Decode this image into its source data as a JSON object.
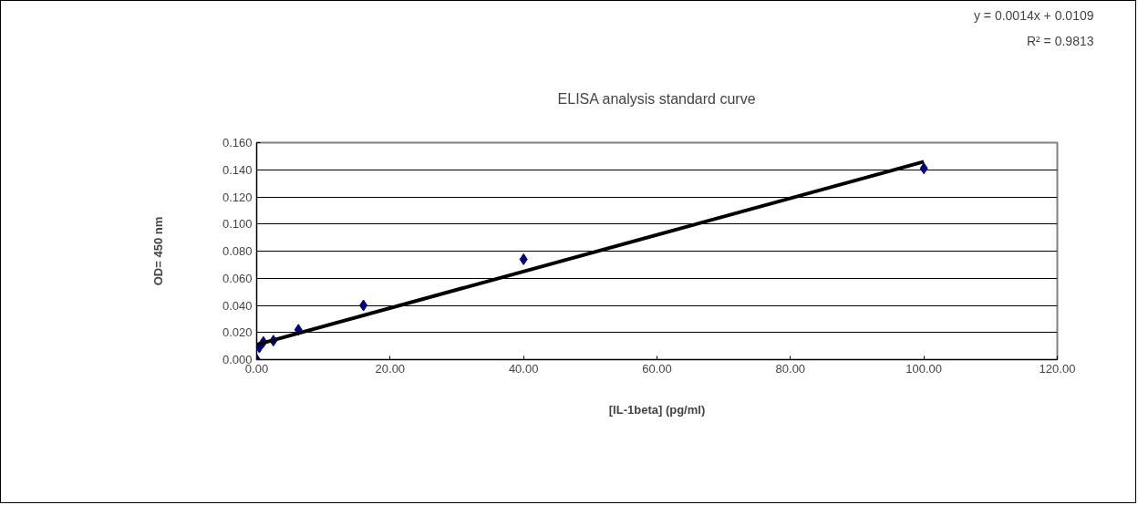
{
  "chart_data": {
    "type": "scatter",
    "title": "ELISA analysis standard curve",
    "xlabel": "[IL-1beta] (pg/ml)",
    "ylabel": "OD= 450 nm",
    "annotations": [
      "y = 0.0014x + 0.0109",
      "R² = 0.9813"
    ],
    "series": [
      {
        "color": "#000080",
        "marker": "diamond",
        "x": [
          0,
          0.4,
          1.0,
          2.5,
          6.25,
          16,
          40,
          100
        ],
        "values": [
          0.0,
          0.009,
          0.013,
          0.014,
          0.022,
          0.04,
          0.074,
          0.141
        ]
      },
      {
        "type": "line",
        "color": "#000000",
        "marker": "none",
        "line_style": "solid",
        "x": [
          0,
          100
        ],
        "values": [
          0.011,
          0.146
        ]
      }
    ],
    "xlim": [
      0,
      120
    ],
    "ylim": [
      0,
      0.16
    ],
    "xticks": [
      {
        "value": 0,
        "label": "0.00"
      },
      {
        "value": 20,
        "label": "20.00"
      },
      {
        "value": 40,
        "label": "40.00"
      },
      {
        "value": 60,
        "label": "60.00"
      },
      {
        "value": 80,
        "label": "80.00"
      },
      {
        "value": 100,
        "label": "100.00"
      },
      {
        "value": 120,
        "label": "120.00"
      }
    ],
    "yticks": [
      {
        "value": 0,
        "label": "0.000"
      },
      {
        "value": 0.02,
        "label": "0.020"
      },
      {
        "value": 0.04,
        "label": "0.040"
      },
      {
        "value": 0.06,
        "label": "0.060"
      },
      {
        "value": 0.08,
        "label": "0.080"
      },
      {
        "value": 0.1,
        "label": "0.100"
      },
      {
        "value": 0.12,
        "label": "0.120"
      },
      {
        "value": 0.14,
        "label": "0.140"
      },
      {
        "value": 0.16,
        "label": "0.160"
      }
    ],
    "grid": "y"
  }
}
